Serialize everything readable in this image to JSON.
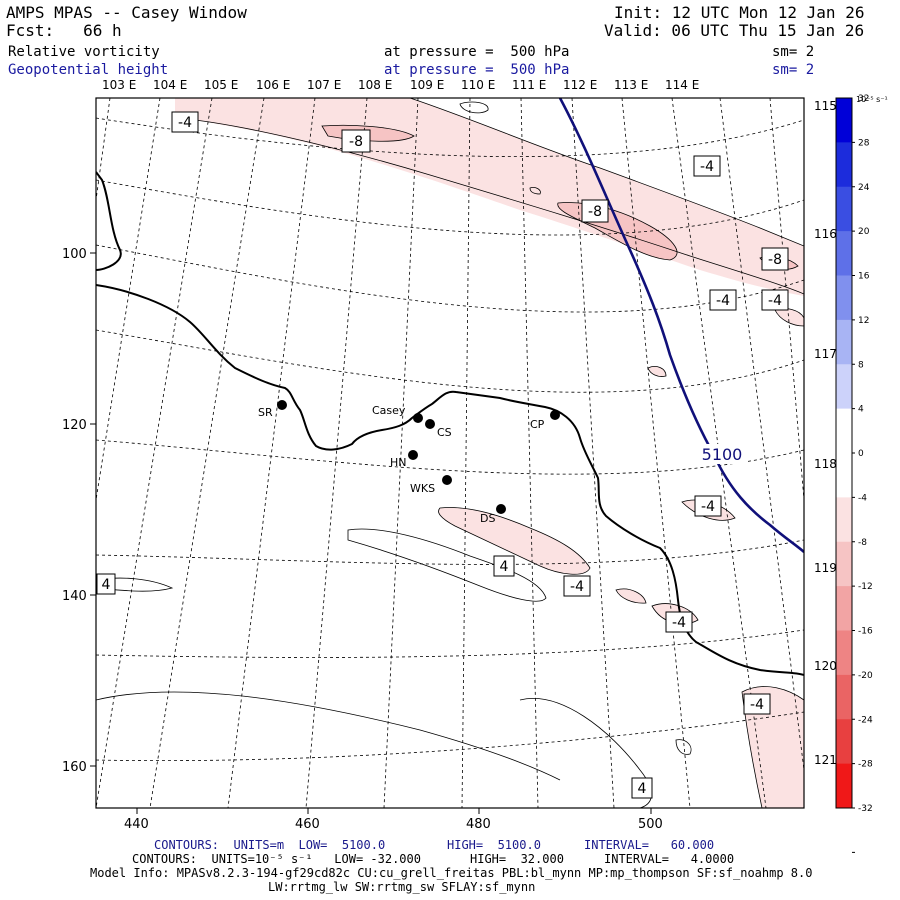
{
  "header": {
    "title": "AMPS MPAS -- Casey Window",
    "forecast": "Fcst:   66 h",
    "init": "Init: 12 UTC Mon 12 Jan 26",
    "valid": "Valid: 06 UTC Thu 15 Jan 26",
    "field1_name": "Relative vorticity",
    "field1_level": "at pressure =  500 hPa",
    "field1_smooth": "sm= 2",
    "field2_name": "Geopotential height",
    "field2_level": "at pressure =  500 hPa",
    "field2_smooth": "sm= 2"
  },
  "map": {
    "lon_top_labels": [
      "103 E",
      "104 E",
      "105 E",
      "106 E",
      "107 E",
      "108 E",
      "109 E",
      "110 E",
      "111 E",
      "112 E",
      "113 E",
      "114 E"
    ],
    "lon_right_labels": [
      "115 E",
      "116 E",
      "117 E",
      "118 E",
      "119 E",
      "120 E",
      "121 E"
    ],
    "y_ticks": [
      "100",
      "120",
      "140",
      "160"
    ],
    "x_ticks": [
      "440",
      "460",
      "480",
      "500"
    ],
    "stations": [
      {
        "label": "SR"
      },
      {
        "label": "Casey"
      },
      {
        "label": "CS"
      },
      {
        "label": "CP"
      },
      {
        "label": "HN"
      },
      {
        "label": "WKS"
      },
      {
        "label": "DS"
      }
    ],
    "contour_labels": [
      "-4",
      "-8",
      "-4",
      "-8",
      "-8",
      "-4",
      "-4",
      "-4",
      "4",
      "-4",
      "4",
      "-4",
      "-4",
      "4"
    ],
    "height_label": "5100"
  },
  "colorbar": {
    "unit": "10⁻⁵ s⁻¹",
    "ticks": [
      "32",
      "28",
      "24",
      "20",
      "16",
      "12",
      "8",
      "4",
      "0",
      "-4",
      "-8",
      "-12",
      "-16",
      "-20",
      "-24",
      "-28",
      "-32"
    ],
    "colors": [
      "#0000d8",
      "#1c2cdc",
      "#3a4ee2",
      "#5e70e8",
      "#8090ee",
      "#a8b4f4",
      "#ccd2fa",
      "#ffffff",
      "#ffffff",
      "#fbe2e2",
      "#f6c4c4",
      "#f2a4a4",
      "#ee8484",
      "#ea6464",
      "#e84040",
      "#f01818"
    ]
  },
  "footer": {
    "line1_a": "CONTOURS:  UNITS=m  LOW=  5100.0",
    "line1_b": "HIGH=  5100.0",
    "line1_c": "INTERVAL=   60.000",
    "line2_a": "CONTOURS:  UNITS=10⁻⁵ s⁻¹   LOW= -32.000",
    "line2_b": "HIGH=  32.000",
    "line2_c": "INTERVAL=   4.0000",
    "line3": "Model Info: MPASv8.2.3-194-gf29cd82c CU:cu_grell_freitas PBL:bl_mynn MP:mp_thompson SF:sf_noahmp 8.0",
    "line4": "LW:rrtmg_lw SW:rrtmg_sw SFLAY:sf_mynn"
  }
}
